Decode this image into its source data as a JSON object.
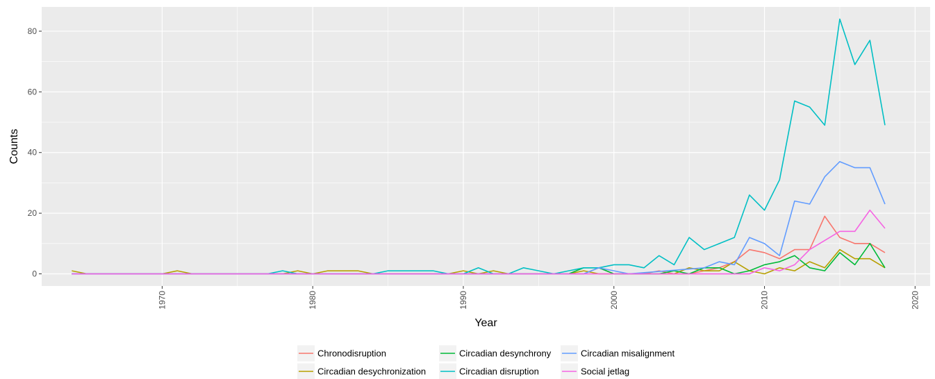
{
  "chart_data": {
    "type": "line",
    "title": "",
    "xlabel": "Year",
    "ylabel": "Counts",
    "xlim": [
      1962,
      2021
    ],
    "ylim": [
      -4,
      88
    ],
    "x_ticks": [
      1970,
      1980,
      1990,
      2000,
      2010,
      2020
    ],
    "y_ticks": [
      0,
      20,
      40,
      60,
      80
    ],
    "grid": true,
    "legend_position": "bottom",
    "colors": {
      "panel_background": "#ebebeb",
      "grid": "#ffffff"
    },
    "series": [
      {
        "name": "Chronodisruption",
        "color": "#F8766D",
        "points": [
          [
            1964,
            0
          ],
          [
            1970,
            0
          ],
          [
            1980,
            0
          ],
          [
            1990,
            0
          ],
          [
            1998,
            0
          ],
          [
            1999,
            2
          ],
          [
            2000,
            0
          ],
          [
            2002,
            0
          ],
          [
            2003,
            1
          ],
          [
            2004,
            0
          ],
          [
            2005,
            0
          ],
          [
            2006,
            1
          ],
          [
            2007,
            2
          ],
          [
            2008,
            4
          ],
          [
            2009,
            8
          ],
          [
            2010,
            7
          ],
          [
            2011,
            5
          ],
          [
            2012,
            8
          ],
          [
            2013,
            8
          ],
          [
            2014,
            19
          ],
          [
            2015,
            12
          ],
          [
            2016,
            10
          ],
          [
            2017,
            10
          ],
          [
            2018,
            7
          ]
        ]
      },
      {
        "name": "Circadian desychronization",
        "color": "#B79F00",
        "points": [
          [
            1964,
            1
          ],
          [
            1965,
            0
          ],
          [
            1970,
            0
          ],
          [
            1971,
            1
          ],
          [
            1972,
            0
          ],
          [
            1978,
            0
          ],
          [
            1979,
            1
          ],
          [
            1980,
            0
          ],
          [
            1981,
            1
          ],
          [
            1982,
            1
          ],
          [
            1983,
            1
          ],
          [
            1984,
            0
          ],
          [
            1989,
            0
          ],
          [
            1990,
            1
          ],
          [
            1991,
            0
          ],
          [
            1992,
            1
          ],
          [
            1993,
            0
          ],
          [
            1997,
            0
          ],
          [
            1998,
            1
          ],
          [
            1999,
            0
          ],
          [
            2003,
            0
          ],
          [
            2004,
            0
          ],
          [
            2005,
            2
          ],
          [
            2006,
            1
          ],
          [
            2007,
            1
          ],
          [
            2008,
            4
          ],
          [
            2009,
            1
          ],
          [
            2010,
            0
          ],
          [
            2011,
            2
          ],
          [
            2012,
            1
          ],
          [
            2013,
            4
          ],
          [
            2014,
            2
          ],
          [
            2015,
            8
          ],
          [
            2016,
            5
          ],
          [
            2017,
            5
          ],
          [
            2018,
            2
          ]
        ]
      },
      {
        "name": "Circadian desynchrony",
        "color": "#00BA38",
        "points": [
          [
            1964,
            0
          ],
          [
            1997,
            0
          ],
          [
            1998,
            2
          ],
          [
            1999,
            2
          ],
          [
            2000,
            0
          ],
          [
            2003,
            0
          ],
          [
            2004,
            1
          ],
          [
            2005,
            0
          ],
          [
            2006,
            2
          ],
          [
            2007,
            2
          ],
          [
            2008,
            0
          ],
          [
            2009,
            1
          ],
          [
            2010,
            3
          ],
          [
            2011,
            4
          ],
          [
            2012,
            6
          ],
          [
            2013,
            2
          ],
          [
            2014,
            1
          ],
          [
            2015,
            7
          ],
          [
            2016,
            3
          ],
          [
            2017,
            10
          ],
          [
            2018,
            2
          ]
        ]
      },
      {
        "name": "Circadian disruption",
        "color": "#00BFC4",
        "points": [
          [
            1964,
            0
          ],
          [
            1977,
            0
          ],
          [
            1978,
            1
          ],
          [
            1979,
            0
          ],
          [
            1984,
            0
          ],
          [
            1985,
            1
          ],
          [
            1986,
            1
          ],
          [
            1987,
            1
          ],
          [
            1988,
            1
          ],
          [
            1989,
            0
          ],
          [
            1990,
            0
          ],
          [
            1991,
            2
          ],
          [
            1992,
            0
          ],
          [
            1993,
            0
          ],
          [
            1994,
            2
          ],
          [
            1995,
            1
          ],
          [
            1996,
            0
          ],
          [
            1997,
            1
          ],
          [
            1998,
            2
          ],
          [
            1999,
            2
          ],
          [
            2000,
            3
          ],
          [
            2001,
            3
          ],
          [
            2002,
            2
          ],
          [
            2003,
            6
          ],
          [
            2004,
            3
          ],
          [
            2005,
            12
          ],
          [
            2006,
            8
          ],
          [
            2007,
            10
          ],
          [
            2008,
            12
          ],
          [
            2009,
            26
          ],
          [
            2010,
            21
          ],
          [
            2011,
            31
          ],
          [
            2012,
            57
          ],
          [
            2013,
            55
          ],
          [
            2014,
            49
          ],
          [
            2015,
            84
          ],
          [
            2016,
            69
          ],
          [
            2017,
            77
          ],
          [
            2018,
            49
          ]
        ]
      },
      {
        "name": "Circadian misalignment",
        "color": "#619CFF",
        "points": [
          [
            1964,
            0
          ],
          [
            1998,
            0
          ],
          [
            1999,
            2
          ],
          [
            2000,
            1
          ],
          [
            2001,
            0
          ],
          [
            2006,
            2
          ],
          [
            2007,
            4
          ],
          [
            2008,
            3
          ],
          [
            2009,
            12
          ],
          [
            2010,
            10
          ],
          [
            2011,
            6
          ],
          [
            2012,
            24
          ],
          [
            2013,
            23
          ],
          [
            2014,
            32
          ],
          [
            2015,
            37
          ],
          [
            2016,
            35
          ],
          [
            2017,
            35
          ],
          [
            2018,
            23
          ]
        ]
      },
      {
        "name": "Social jetlag",
        "color": "#F564E3",
        "points": [
          [
            1964,
            0
          ],
          [
            2009,
            0
          ],
          [
            2010,
            2
          ],
          [
            2011,
            1
          ],
          [
            2012,
            3
          ],
          [
            2013,
            8
          ],
          [
            2014,
            11
          ],
          [
            2015,
            14
          ],
          [
            2016,
            14
          ],
          [
            2017,
            21
          ],
          [
            2018,
            15
          ]
        ]
      }
    ]
  }
}
